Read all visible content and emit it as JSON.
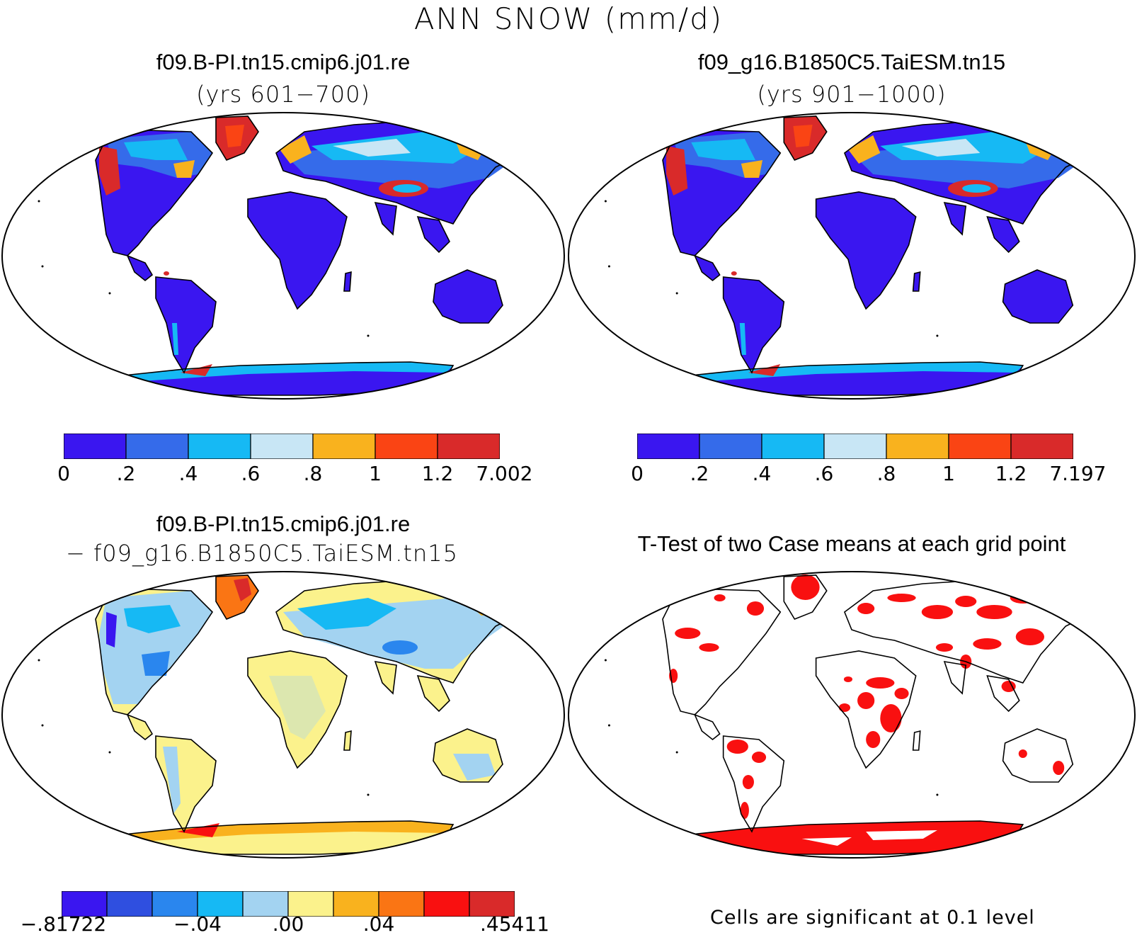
{
  "main_title": "ANN SNOW (mm/d)",
  "panels": {
    "top_left": {
      "title": "f09.B-PI.tn15.cmip6.j01.re",
      "subtitle": "(yrs 601−700)"
    },
    "top_right": {
      "title": "f09_g16.B1850C5.TaiESM.tn15",
      "subtitle": "(yrs 901−1000)"
    },
    "bottom_left": {
      "title": "f09.B-PI.tn15.cmip6.j01.re",
      "subtitle": "− f09_g16.B1850C5.TaiESM.tn15"
    },
    "bottom_right": {
      "title": "T-Test of two Case means at each grid point",
      "note": "Cells are significant at 0.1 level"
    }
  },
  "colorbars": {
    "snow_left": {
      "colors": [
        "#3a16f0",
        "#356bea",
        "#16b9f4",
        "#c8e6f5",
        "#f9b21e",
        "#fa4414",
        "#d92a2a"
      ],
      "labels": [
        "0",
        ".2",
        ".4",
        ".6",
        ".8",
        "1",
        "1.2",
        "7.002"
      ]
    },
    "snow_right": {
      "colors": [
        "#3a16f0",
        "#356bea",
        "#16b9f4",
        "#c8e6f5",
        "#f9b21e",
        "#fa4414",
        "#d92a2a"
      ],
      "labels": [
        "0",
        ".2",
        ".4",
        ".6",
        ".8",
        "1",
        "1.2",
        "7.197"
      ]
    },
    "diff": {
      "colors": [
        "#3a16f0",
        "#2f4fe0",
        "#2a86ee",
        "#16b9f4",
        "#a3d3f1",
        "#fbf28c",
        "#f9b21e",
        "#fa7514",
        "#f91010",
        "#d92a2a"
      ],
      "labels": [
        "−.81722",
        "−.04",
        ".00",
        ".04",
        ".45411"
      ]
    }
  },
  "map_colors": {
    "snow_low": "#3a16f0",
    "snow_mid": "#356bea",
    "snow_light": "#16b9f4",
    "snow_pale": "#c8e6f5",
    "snow_orange": "#f9b21e",
    "snow_red": "#d92a2a",
    "diff_yellow": "#fbf28c",
    "diff_lightblue": "#a3d3f1",
    "sig_red": "#f91010"
  }
}
